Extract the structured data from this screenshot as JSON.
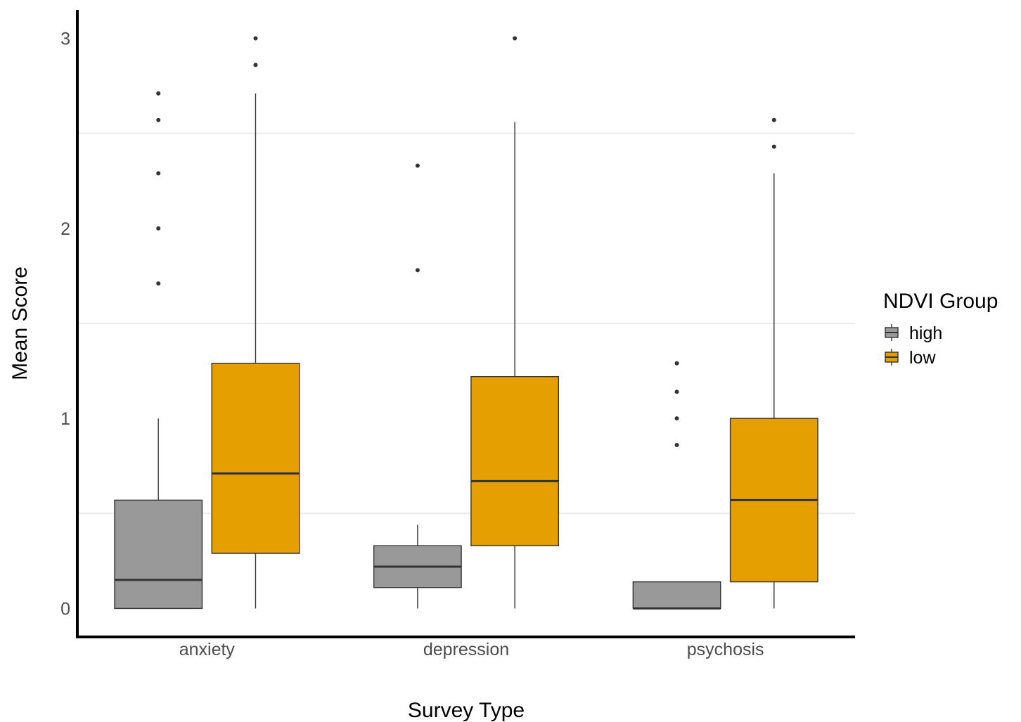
{
  "chart_data": {
    "type": "boxplot",
    "xlabel": "Survey Type",
    "ylabel": "Mean Score",
    "ylim": [
      -0.15,
      3.15
    ],
    "yticks": [
      0,
      1,
      2,
      3
    ],
    "minor_gridlines": [
      0.5,
      1.5,
      2.5
    ],
    "grid": "horizontal minor only",
    "categories": [
      "anxiety",
      "depression",
      "psychosis"
    ],
    "legend": {
      "title": "NDVI Group",
      "placement": "right",
      "entries": [
        "high",
        "low"
      ]
    },
    "colors": {
      "high": "#999999",
      "low": "#E69F00"
    },
    "series": [
      {
        "name": "high",
        "boxes": [
          {
            "category": "anxiety",
            "min": 0,
            "q1": 0,
            "median": 0.15,
            "q3": 0.57,
            "max": 1.0,
            "outliers": [
              1.71,
              2.0,
              2.29,
              2.57,
              2.71
            ]
          },
          {
            "category": "depression",
            "min": 0,
            "q1": 0.11,
            "median": 0.22,
            "q3": 0.33,
            "max": 0.44,
            "outliers": [
              1.78,
              2.33
            ]
          },
          {
            "category": "psychosis",
            "min": 0,
            "q1": 0,
            "median": 0,
            "q3": 0.14,
            "max": 0.14,
            "outliers": [
              0.86,
              1.0,
              1.14,
              1.29
            ]
          }
        ]
      },
      {
        "name": "low",
        "boxes": [
          {
            "category": "anxiety",
            "min": 0,
            "q1": 0.29,
            "median": 0.71,
            "q3": 1.29,
            "max": 2.71,
            "outliers": [
              2.86,
              3.0
            ]
          },
          {
            "category": "depression",
            "min": 0,
            "q1": 0.33,
            "median": 0.67,
            "q3": 1.22,
            "max": 2.56,
            "outliers": [
              3.0
            ]
          },
          {
            "category": "psychosis",
            "min": 0,
            "q1": 0.14,
            "median": 0.57,
            "q3": 1.0,
            "max": 2.29,
            "outliers": [
              2.43,
              2.57
            ]
          }
        ]
      }
    ]
  }
}
